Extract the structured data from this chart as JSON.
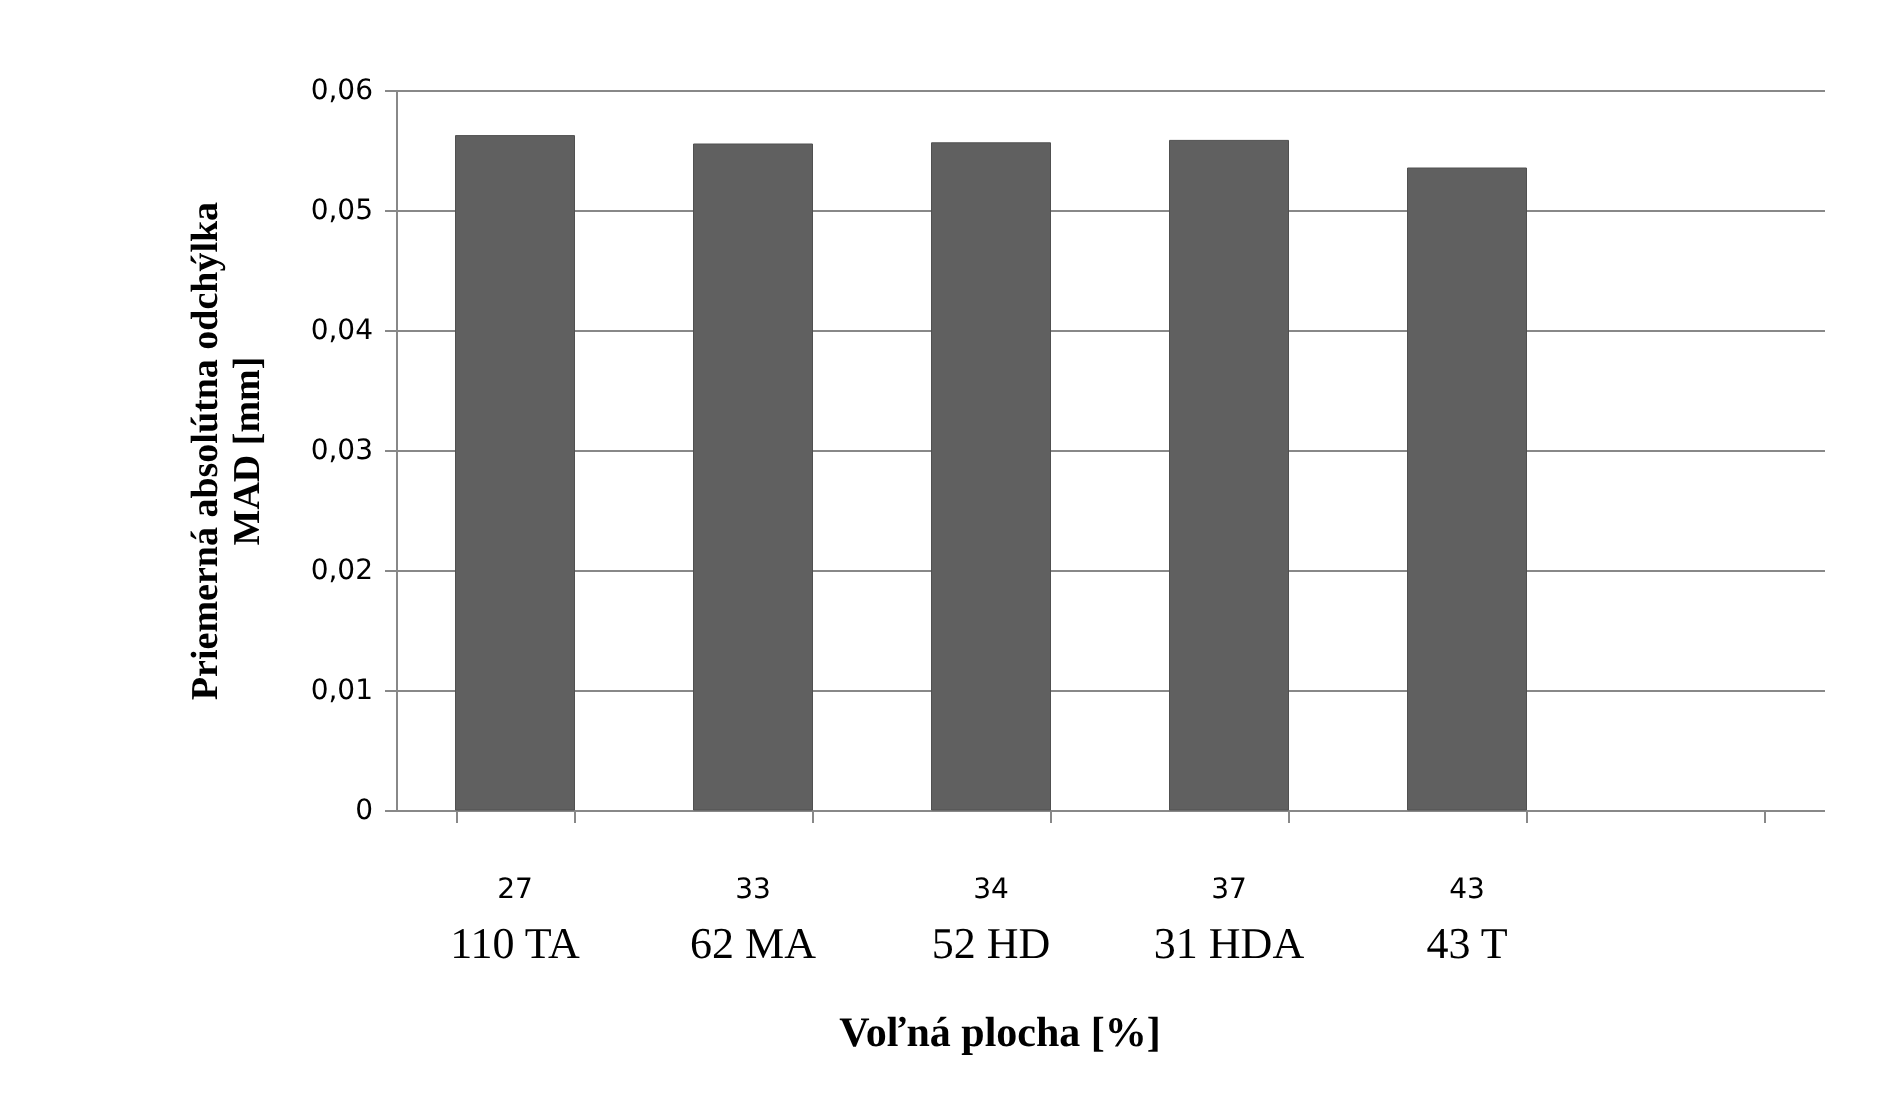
{
  "chart_data": {
    "type": "bar",
    "xlabel": "Voľná plocha [%]",
    "ylabel": "Priemerná absolútna odchýlka\nMAD [mm]",
    "categories": [
      "27\n110 TA",
      "33\n62 MA",
      "34\n52 HD",
      "37\n31 HDA",
      "43\n43 T",
      null
    ],
    "series": [
      {
        "color": "#606060",
        "values": [
          0.0562,
          0.0555,
          0.0556,
          0.0558,
          0.0535,
          null
        ]
      }
    ],
    "ylim": [
      0,
      0.06
    ],
    "yticks": [
      0,
      {
        "value": 0.01,
        "label": "0,01"
      },
      {
        "value": 0.02,
        "label": "0,02"
      },
      {
        "value": 0.03,
        "label": "0,03"
      },
      {
        "value": 0.04,
        "label": "0,04"
      },
      {
        "value": 0.05,
        "label": "0,05"
      },
      {
        "value": 0.06,
        "label": "0,06"
      }
    ],
    "grid": "y"
  }
}
